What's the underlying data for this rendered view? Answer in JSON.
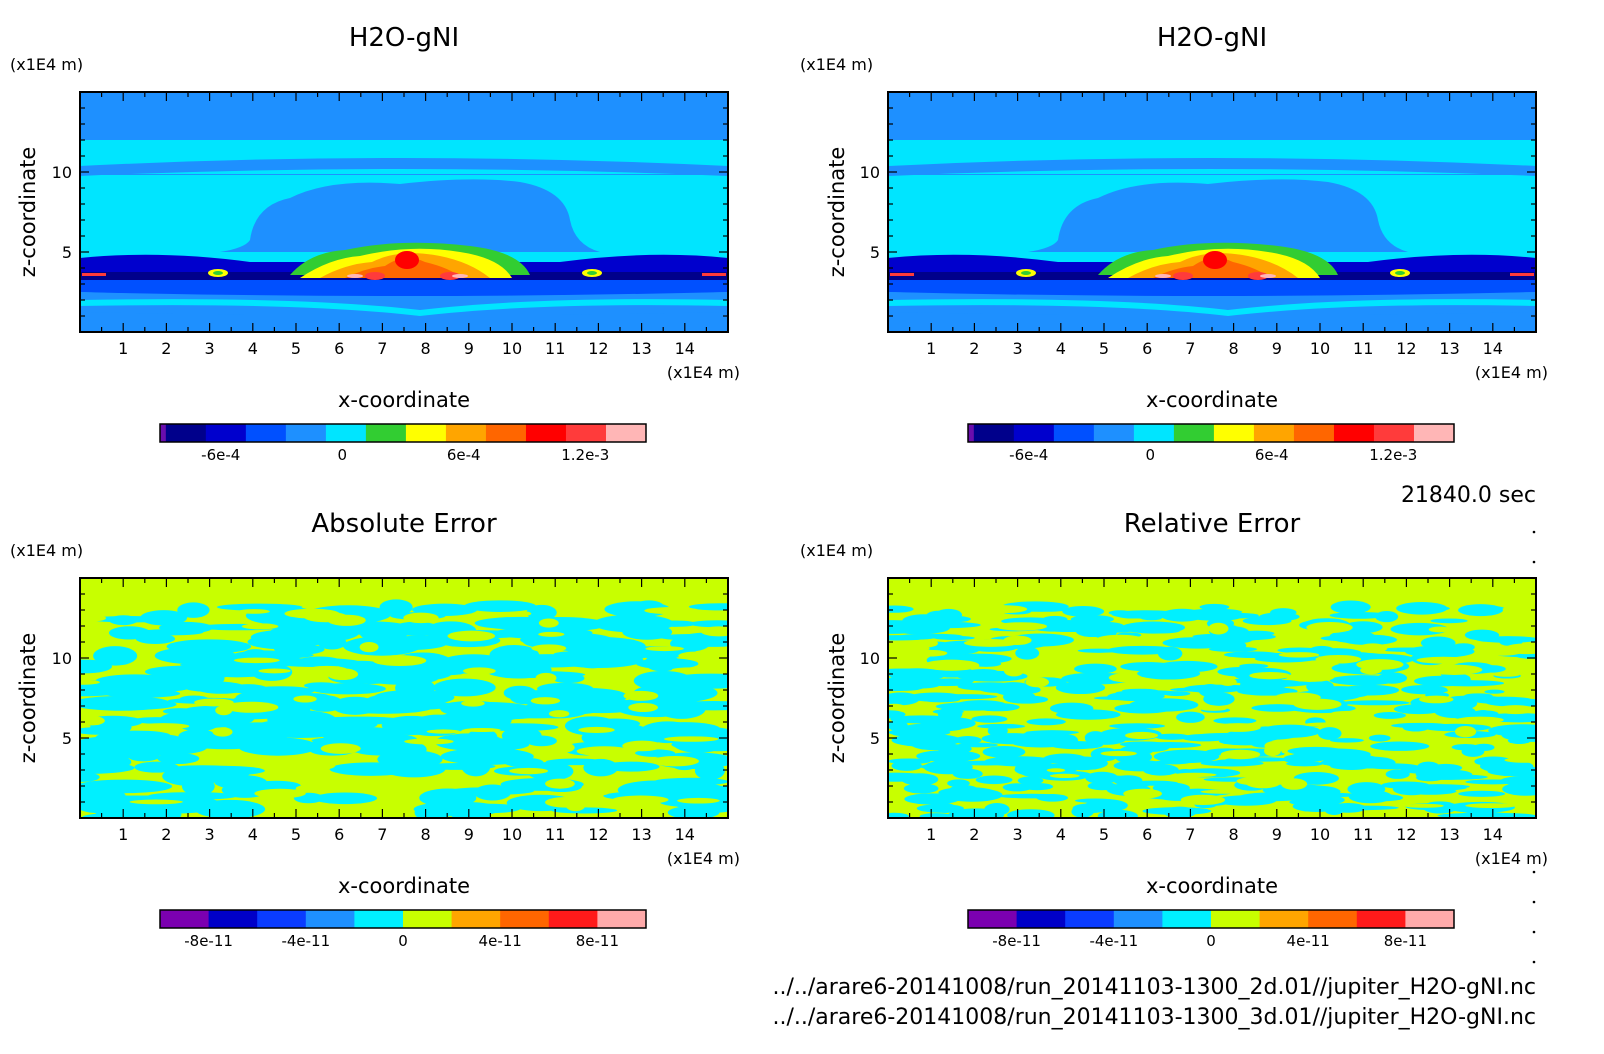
{
  "chart_data": [
    {
      "type": "heatmap",
      "title": "H2O-gNI",
      "xlabel": "x-coordinate",
      "ylabel": "z-coordinate",
      "x_unit": "(x1E4 m)",
      "y_unit": "(x1E4 m)",
      "xlim": [
        0,
        15
      ],
      "ylim": [
        0,
        15
      ],
      "x_ticks": [
        "1",
        "2",
        "3",
        "4",
        "5",
        "6",
        "7",
        "8",
        "9",
        "10",
        "11",
        "12",
        "13",
        "14"
      ],
      "y_ticks": [
        "5",
        "10"
      ],
      "colorbar": {
        "levels": [
          -0.0009,
          0.0015
        ],
        "colors": [
          "#6a0dad",
          "#00008b",
          "#0000cd",
          "#0050ff",
          "#1e90ff",
          "#00e5ff",
          "#32cd32",
          "#ffff00",
          "#ffa500",
          "#ff6600",
          "#ff0000",
          "#ff3b3b",
          "#ffb6b6"
        ],
        "tick_values": [
          -0.0006,
          0,
          0.0006,
          0.0012
        ],
        "tick_labels": [
          "-6e-4",
          "0",
          "6e-4",
          "1.2e-3"
        ]
      }
    },
    {
      "type": "heatmap",
      "title": "H2O-gNI",
      "xlabel": "x-coordinate",
      "ylabel": "z-coordinate",
      "x_unit": "(x1E4 m)",
      "y_unit": "(x1E4 m)",
      "xlim": [
        0,
        15
      ],
      "ylim": [
        0,
        15
      ],
      "x_ticks": [
        "1",
        "2",
        "3",
        "4",
        "5",
        "6",
        "7",
        "8",
        "9",
        "10",
        "11",
        "12",
        "13",
        "14"
      ],
      "y_ticks": [
        "5",
        "10"
      ],
      "colorbar": {
        "levels": [
          -0.0009,
          0.0015
        ],
        "colors": [
          "#6a0dad",
          "#00008b",
          "#0000cd",
          "#0050ff",
          "#1e90ff",
          "#00e5ff",
          "#32cd32",
          "#ffff00",
          "#ffa500",
          "#ff6600",
          "#ff0000",
          "#ff3b3b",
          "#ffb6b6"
        ],
        "tick_values": [
          -0.0006,
          0,
          0.0006,
          0.0012
        ],
        "tick_labels": [
          "-6e-4",
          "0",
          "6e-4",
          "1.2e-3"
        ]
      }
    },
    {
      "type": "heatmap",
      "title": "Absolute Error",
      "xlabel": "x-coordinate",
      "ylabel": "z-coordinate",
      "x_unit": "(x1E4 m)",
      "y_unit": "(x1E4 m)",
      "xlim": [
        0,
        15
      ],
      "ylim": [
        0,
        15
      ],
      "x_ticks": [
        "1",
        "2",
        "3",
        "4",
        "5",
        "6",
        "7",
        "8",
        "9",
        "10",
        "11",
        "12",
        "13",
        "14"
      ],
      "y_ticks": [
        "5",
        "10"
      ],
      "colorbar": {
        "levels": [
          -1e-10,
          1e-10
        ],
        "colors": [
          "#7b00b0",
          "#0000c8",
          "#0a3cff",
          "#1e90ff",
          "#00f0ff",
          "#c8ff00",
          "#ffa500",
          "#ff6600",
          "#ff1a1a",
          "#ffaaaa"
        ],
        "tick_values": [
          -8e-11,
          -4e-11,
          0,
          4e-11,
          8e-11
        ],
        "tick_labels": [
          "-8e-11",
          "-4e-11",
          "0",
          "4e-11",
          "8e-11"
        ]
      }
    },
    {
      "type": "heatmap",
      "title": "Relative Error",
      "xlabel": "x-coordinate",
      "ylabel": "z-coordinate",
      "x_unit": "(x1E4 m)",
      "y_unit": "(x1E4 m)",
      "xlim": [
        0,
        15
      ],
      "ylim": [
        0,
        15
      ],
      "x_ticks": [
        "1",
        "2",
        "3",
        "4",
        "5",
        "6",
        "7",
        "8",
        "9",
        "10",
        "11",
        "12",
        "13",
        "14"
      ],
      "y_ticks": [
        "5",
        "10"
      ],
      "colorbar": {
        "levels": [
          -1e-10,
          1e-10
        ],
        "colors": [
          "#7b00b0",
          "#0000c8",
          "#0a3cff",
          "#1e90ff",
          "#00f0ff",
          "#c8ff00",
          "#ffa500",
          "#ff6600",
          "#ff1a1a",
          "#ffaaaa"
        ],
        "tick_values": [
          -8e-11,
          -4e-11,
          0,
          4e-11,
          8e-11
        ],
        "tick_labels": [
          "-8e-11",
          "-4e-11",
          "0",
          "4e-11",
          "8e-11"
        ]
      }
    }
  ],
  "time_label": "21840.0 sec",
  "footer": [
    "../../arare6-20141008/run_20141103-1300_2d.01//jupiter_H2O-gNI.nc",
    "../../arare6-20141008/run_20141103-1300_3d.01//jupiter_H2O-gNI.nc"
  ]
}
